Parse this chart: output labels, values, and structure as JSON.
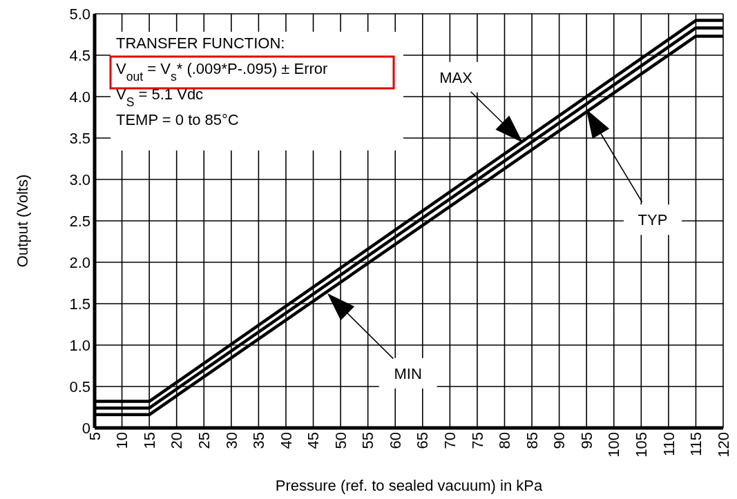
{
  "chart_data": {
    "type": "line",
    "xlabel": "Pressure (ref. to sealed vacuum) in kPa",
    "ylabel": "Output (Volts)",
    "annotations": [
      "TRANSFER FUNCTION:",
      "V$_{out}$ = V$_{s}$* (.009*P-.095) ± Error",
      "V$_{S}$ = 5.1 Vdc",
      "TEMP = 0 to 85°C",
      "MAX",
      "TYP",
      "MIN"
    ],
    "series": [
      {
        "color": "#000000",
        "x": [
          5,
          15,
          115,
          120
        ],
        "values": [
          0.32,
          0.32,
          4.92,
          4.92
        ]
      },
      {
        "color": "#000000",
        "x": [
          5,
          15,
          115,
          120
        ],
        "values": [
          0.24,
          0.24,
          4.83,
          4.83
        ]
      },
      {
        "color": "#000000",
        "x": [
          5,
          15,
          115,
          120
        ],
        "values": [
          0.16,
          0.16,
          4.73,
          4.73
        ]
      }
    ],
    "xlim": [
      5,
      120
    ],
    "xticks": [
      5,
      10,
      15,
      20,
      25,
      30,
      35,
      40,
      45,
      50,
      55,
      60,
      65,
      70,
      75,
      80,
      85,
      90,
      95,
      100,
      105,
      110,
      115,
      120
    ],
    "ylim": [
      0,
      5
    ],
    "yticks": [
      0,
      {
        "value": 0.5,
        "label": "0.5"
      },
      {
        "value": 1,
        "label": "1.0"
      },
      {
        "value": 1.5,
        "label": "1.5"
      },
      {
        "value": 2,
        "label": "2.0"
      },
      {
        "value": 2.5,
        "label": "2.5"
      },
      {
        "value": 3,
        "label": "3.0"
      },
      {
        "value": 3.5,
        "label": "3.5"
      },
      {
        "value": 4,
        "label": "4.0"
      },
      {
        "value": 4.5,
        "label": "4.5"
      },
      {
        "value": 5,
        "label": "5.0"
      }
    ],
    "grid": true,
    "marker": "none",
    "line_style": "solid"
  }
}
